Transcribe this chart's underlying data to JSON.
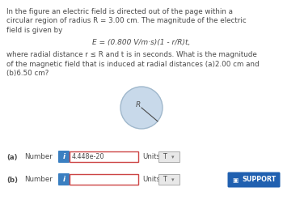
{
  "bg_color": "#ffffff",
  "text_color": "#4a4a4a",
  "paragraph1_lines": [
    "In the figure an electric field is directed out of the page within a",
    "circular region of radius R = 3.00 cm. The magnitude of the electric",
    "field is given by"
  ],
  "equation": "E = (0.800 V/m·s)(1 - r/R)t,",
  "paragraph2_lines": [
    "where radial distance r ≤ R and t is in seconds. What is the magnitude",
    "of the magnetic field that is induced at radial distances (a)2.00 cm and",
    "(b)6.50 cm?"
  ],
  "circle_color": "#c8d9ea",
  "circle_edge_color": "#a0b8cc",
  "R_label": "R",
  "label_a": "(a)",
  "label_b": "(b)",
  "number_label": "Number",
  "units_label": "Units",
  "answer_a": "4.448e-20",
  "answer_b": "",
  "unit_val": "T",
  "info_btn_color": "#3a7fc1",
  "box_border_color": "#cc4444",
  "unit_box_color": "#e8e8e8",
  "unit_box_border": "#aaaaaa",
  "support_color": "#2060b0",
  "support_text": "SUPPORT",
  "support_icon": "⧉"
}
